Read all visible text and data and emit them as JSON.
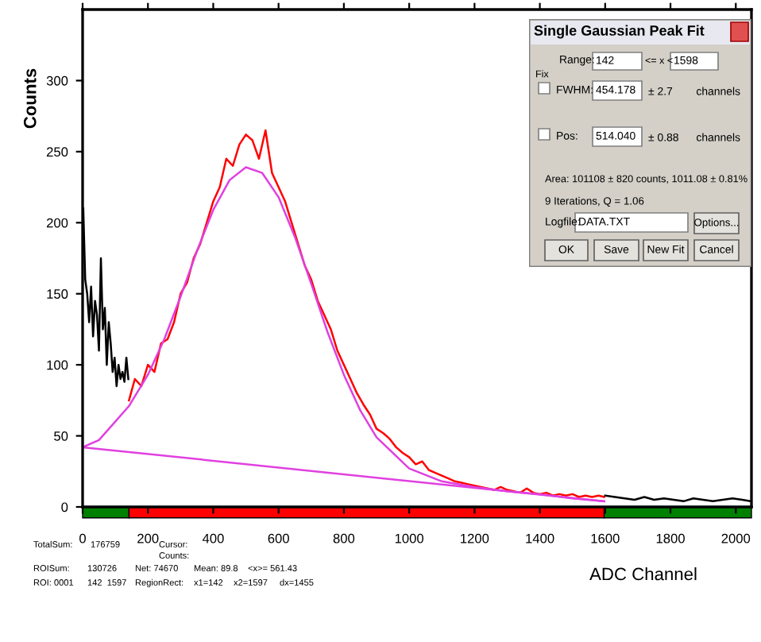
{
  "chart_data": {
    "type": "line",
    "xlabel": "ADC Channel",
    "ylabel": "Counts",
    "xlim": [
      0,
      2048
    ],
    "ylim": [
      0,
      350
    ],
    "xticks": [
      0,
      200,
      400,
      600,
      800,
      1000,
      1200,
      1400,
      1600,
      1800,
      2000
    ],
    "yticks": [
      0,
      50,
      100,
      150,
      200,
      250,
      300
    ],
    "grid": false,
    "marker": "none",
    "line_style": "solid",
    "series": [
      {
        "color": "#000000",
        "x": [
          2,
          8,
          14,
          20,
          26,
          32,
          38,
          44,
          50,
          56,
          62,
          68,
          74,
          80,
          86,
          92,
          98,
          104,
          110,
          116,
          122,
          128,
          134,
          140
        ],
        "values": [
          210,
          160,
          150,
          130,
          155,
          120,
          145,
          135,
          110,
          175,
          125,
          140,
          100,
          130,
          115,
          95,
          105,
          85,
          100,
          90,
          95,
          88,
          105,
          90
        ]
      },
      {
        "color": "#ff0000",
        "x": [
          142,
          160,
          180,
          200,
          220,
          240,
          260,
          280,
          300,
          320,
          340,
          360,
          380,
          400,
          420,
          440,
          460,
          480,
          500,
          520,
          540,
          560,
          580,
          600,
          620,
          640,
          660,
          680,
          700,
          720,
          740,
          760,
          780,
          800,
          820,
          840,
          860,
          880,
          900,
          920,
          940,
          960,
          980,
          1000,
          1020,
          1040,
          1060,
          1080,
          1100,
          1120,
          1140,
          1160,
          1180,
          1200,
          1220,
          1240,
          1260,
          1280,
          1300,
          1320,
          1340,
          1360,
          1380,
          1400,
          1420,
          1440,
          1460,
          1480,
          1500,
          1520,
          1540,
          1560,
          1580,
          1597
        ],
        "values": [
          75,
          90,
          85,
          100,
          95,
          115,
          118,
          130,
          150,
          158,
          175,
          185,
          200,
          215,
          225,
          245,
          240,
          255,
          262,
          258,
          245,
          265,
          235,
          225,
          215,
          200,
          185,
          170,
          160,
          145,
          135,
          125,
          110,
          100,
          90,
          80,
          72,
          65,
          55,
          52,
          48,
          42,
          38,
          35,
          30,
          32,
          26,
          24,
          22,
          20,
          18,
          17,
          16,
          15,
          14,
          13,
          12,
          14,
          12,
          11,
          10,
          13,
          10,
          9,
          10,
          8,
          9,
          8,
          9,
          7,
          8,
          7,
          8,
          7
        ]
      },
      {
        "color": "#000000",
        "x": [
          1600,
          1630,
          1660,
          1690,
          1720,
          1750,
          1780,
          1810,
          1840,
          1870,
          1900,
          1930,
          1960,
          1990,
          2020,
          2046
        ],
        "values": [
          8,
          7,
          6,
          5,
          7,
          5,
          6,
          5,
          4,
          6,
          5,
          4,
          5,
          6,
          5,
          4
        ]
      },
      {
        "color": "#e040e0",
        "x": [
          0,
          50,
          100,
          142,
          200,
          250,
          300,
          350,
          400,
          450,
          500,
          550,
          600,
          650,
          700,
          750,
          800,
          850,
          900,
          1000,
          1100,
          1200,
          1300,
          1400,
          1500,
          1597
        ],
        "values": [
          42,
          47,
          60,
          71,
          93,
          118,
          148,
          180,
          209,
          230,
          239,
          235,
          218,
          190,
          157,
          123,
          93,
          68,
          49,
          27,
          18,
          14,
          11,
          9,
          6,
          4
        ]
      },
      {
        "color": "#e040e0",
        "x": [
          0,
          1597
        ],
        "values": [
          42,
          4
        ]
      }
    ],
    "annotations": [
      "Single Gaussian Peak Fit",
      "Range:",
      "142",
      "<= x <",
      "1598",
      "Fix",
      "FWHM:",
      "454.178",
      "± 2.7",
      "channels",
      "Pos:",
      "514.040",
      "± 0.88",
      "channels",
      "Area: 101108 ± 820 counts, 1011.08 ± 0.81%",
      "9 Iterations, Q = 1.06",
      "Logfile:",
      "DATA.TXT",
      "Options...",
      "OK",
      "Save",
      "New Fit",
      "Cancel",
      "TotalSum:",
      "176759",
      "Cursor:",
      "Counts:",
      "ROISum:",
      "130726",
      "Net: 74670",
      "Mean: 89.8",
      "<x>= 561.43",
      "ROI: 0001",
      "142  1597",
      "RegionRect:",
      "x1=142",
      "x2=1597",
      "dx=1455"
    ]
  }
}
